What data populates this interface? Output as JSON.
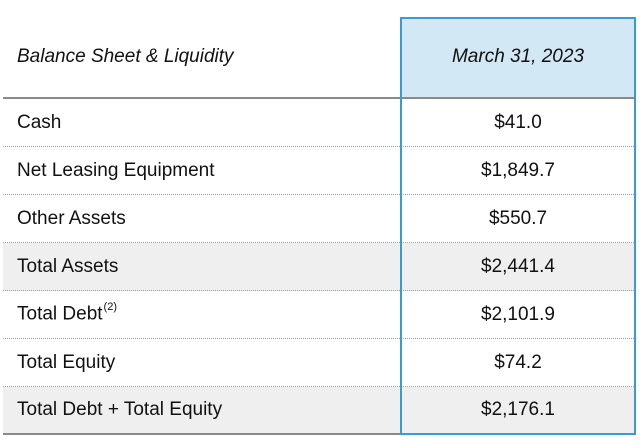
{
  "header": {
    "label": "Balance Sheet & Liquidity",
    "column": "March 31, 2023"
  },
  "rows": [
    {
      "label": "Cash",
      "sup": "",
      "value": "$41.0",
      "shaded": false
    },
    {
      "label": "Net Leasing Equipment",
      "sup": "",
      "value": "$1,849.7",
      "shaded": false
    },
    {
      "label": "Other Assets",
      "sup": "",
      "value": "$550.7",
      "shaded": false
    },
    {
      "label": "Total Assets",
      "sup": "",
      "value": "$2,441.4",
      "shaded": true
    },
    {
      "label": "Total Debt",
      "sup": "(2)",
      "value": "$2,101.9",
      "shaded": false
    },
    {
      "label": "Total Equity",
      "sup": "",
      "value": "$74.2",
      "shaded": false
    },
    {
      "label": "Total Debt + Total Equity",
      "sup": "",
      "value": "$2,176.1",
      "shaded": true
    }
  ],
  "colors": {
    "column_border": "#3a9bd2",
    "column_header_fill": "#d3e8f5",
    "shaded_row": "#efefef"
  }
}
